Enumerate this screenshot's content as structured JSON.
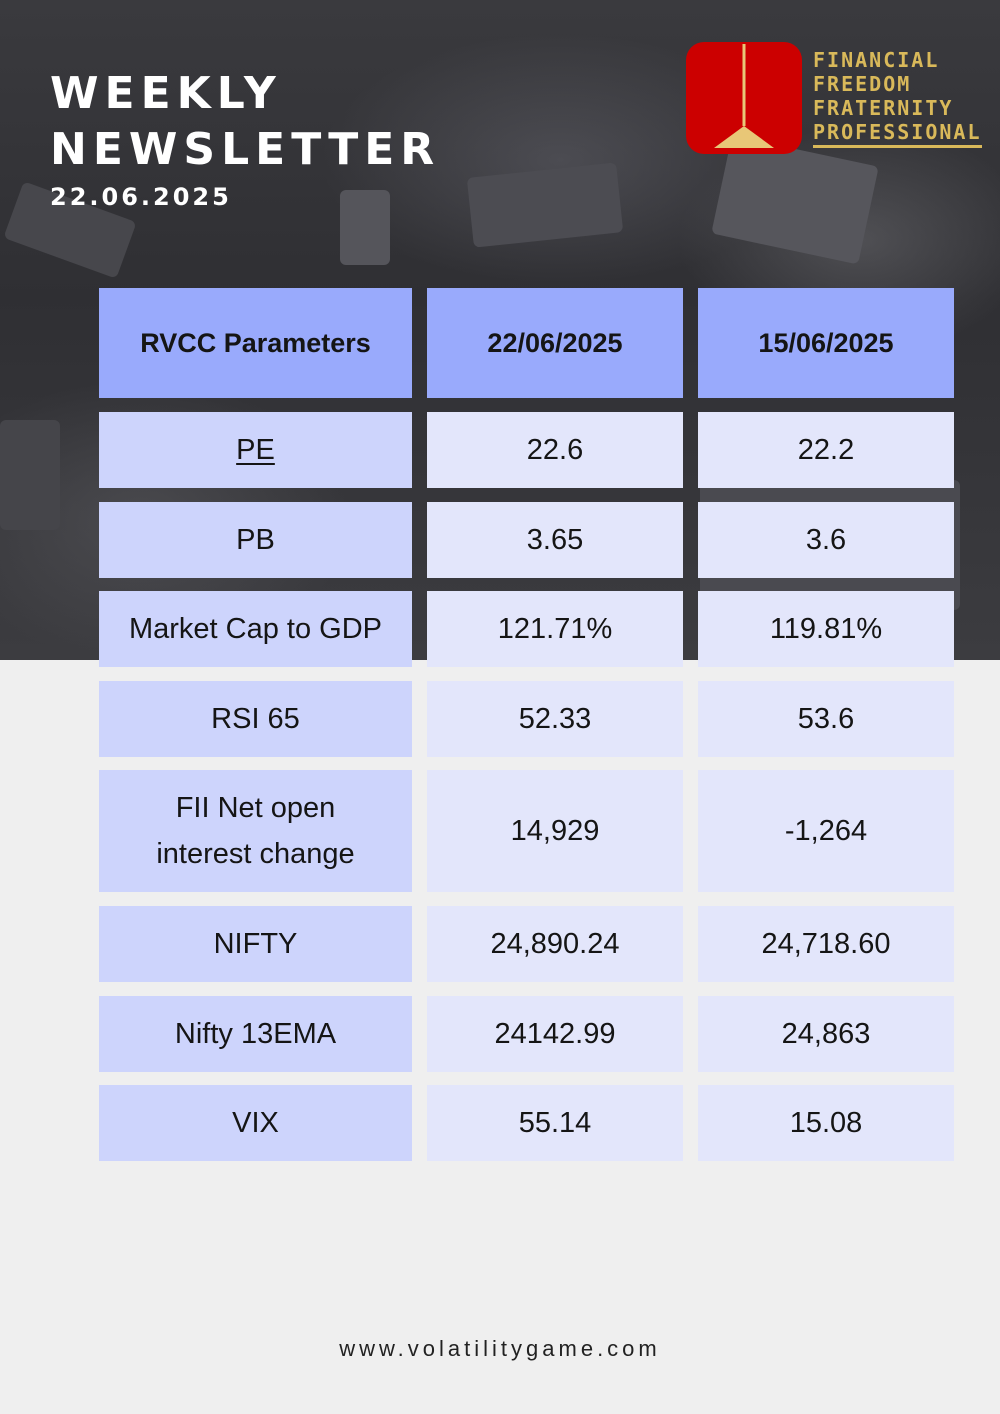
{
  "header": {
    "title_line1": "WEEKLY",
    "title_line2": "NEWSLETTER",
    "date": "22.06.2025"
  },
  "brand": {
    "line1": "FINANCIAL",
    "line2": "FREEDOM",
    "line3": "FRATERNITY",
    "line4": "PROFESSIONAL",
    "logo_color": "#cc0000",
    "accent_color": "#d9b95a"
  },
  "table": {
    "headers": [
      "RVCC Parameters",
      "22/06/2025",
      "15/06/2025"
    ],
    "rows": [
      [
        "PE",
        "22.6",
        "22.2"
      ],
      [
        "PB",
        "3.65",
        "3.6"
      ],
      [
        "Market Cap to GDP",
        "121.71%",
        "119.81%"
      ],
      [
        "RSI 65",
        "52.33",
        "53.6"
      ],
      [
        "FII Net open interest change",
        "14,929",
        "-1,264"
      ],
      [
        "NIFTY",
        "24,890.24",
        "24,718.60"
      ],
      [
        "Nifty 13EMA",
        "24142.99",
        "24,863"
      ],
      [
        "VIX",
        "55.14",
        "15.08"
      ]
    ],
    "header_color": "#99aafc",
    "label_cell_color": "#cdd4fc",
    "value_cell_color": "#e3e6fb"
  },
  "footer": {
    "url": "www.volatilitygame.com"
  }
}
